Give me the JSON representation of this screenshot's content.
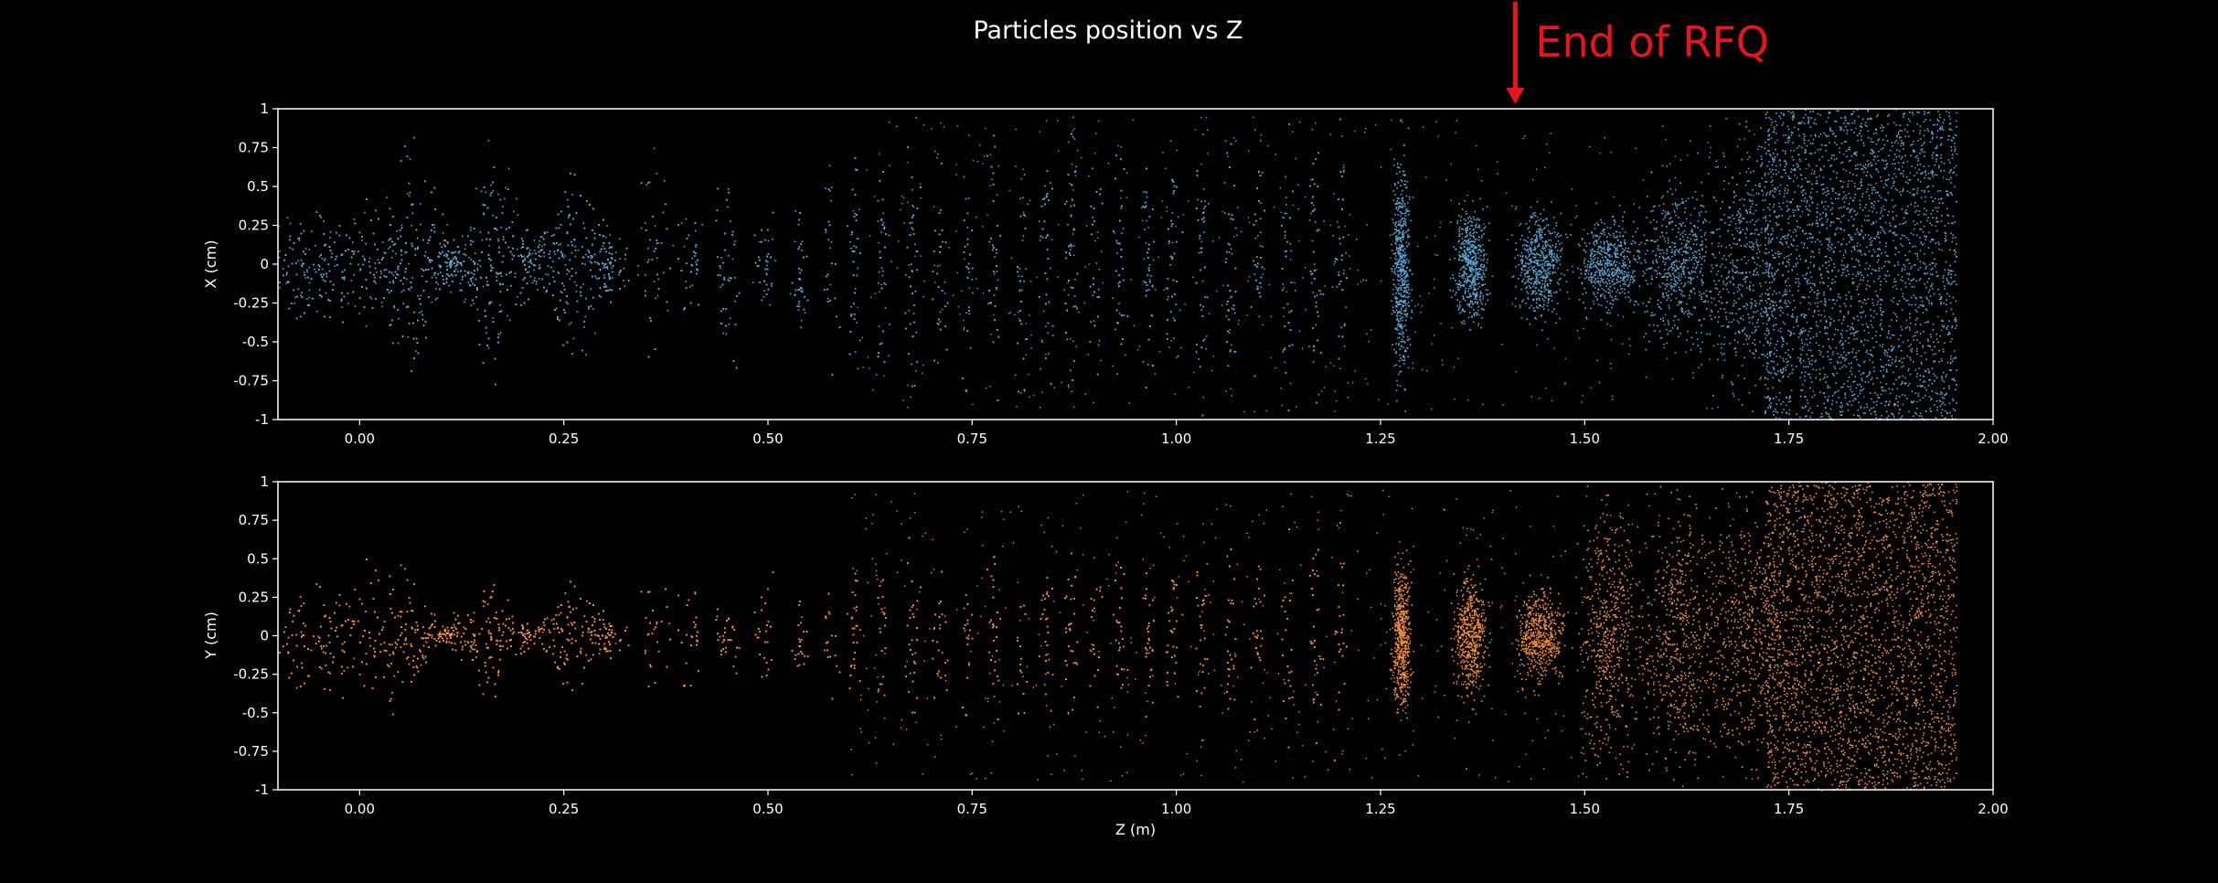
{
  "chart_data": {
    "title": "Particles position vs Z",
    "annotation": {
      "text": "End of RFQ",
      "x": 1.415,
      "color": "#e8141b"
    },
    "type": "scatter",
    "background": "#000000",
    "grid": false,
    "xlim": [
      -0.1,
      2.0
    ],
    "xticks": [
      0.0,
      0.25,
      0.5,
      0.75,
      1.0,
      1.25,
      1.5,
      1.75,
      2.0
    ],
    "xtick_labels": [
      "0.00",
      "0.25",
      "0.50",
      "0.75",
      "1.00",
      "1.25",
      "1.50",
      "1.75",
      "2.00"
    ],
    "xlabel": "Z (m)",
    "rfq_bunch_centers": [
      0.063,
      0.117,
      0.165,
      0.212,
      0.263,
      0.31,
      0.36,
      0.405,
      0.45,
      0.495,
      0.538,
      0.575,
      0.605,
      0.64,
      0.675,
      0.71,
      0.745,
      0.775,
      0.81,
      0.84,
      0.87,
      0.9,
      0.93,
      0.965,
      0.995,
      1.03,
      1.065,
      1.1,
      1.135,
      1.17,
      1.2
    ],
    "bunch_centers": [
      1.275,
      1.36,
      1.445,
      1.53,
      1.615,
      1.7
    ],
    "z_end": 1.955,
    "panels": [
      {
        "name": "x",
        "ylabel": "X (cm)",
        "ylim": [
          -1,
          1
        ],
        "yticks": [
          1,
          0.75,
          0.5,
          0.25,
          0,
          -0.25,
          -0.5,
          -0.75,
          -1
        ],
        "ytick_labels": [
          "1",
          "0.75",
          "0.5",
          "0.25",
          "0",
          "-0.25",
          "-0.5",
          "-0.75",
          "-1"
        ],
        "color": "#5ba8d6",
        "rfq_envelope": [
          [
            -0.1,
            0.48
          ],
          [
            -0.03,
            0.38
          ],
          [
            0.03,
            0.42
          ],
          [
            0.063,
            0.85
          ],
          [
            0.117,
            0.12
          ],
          [
            0.165,
            0.85
          ],
          [
            0.212,
            0.15
          ],
          [
            0.263,
            0.78
          ],
          [
            0.31,
            0.2
          ],
          [
            0.36,
            0.72
          ],
          [
            0.405,
            0.3
          ],
          [
            0.45,
            0.85
          ],
          [
            0.495,
            0.35
          ],
          [
            0.55,
            0.55
          ],
          [
            0.6,
            0.85
          ],
          [
            0.7,
            0.85
          ],
          [
            0.8,
            0.9
          ],
          [
            0.9,
            0.92
          ],
          [
            1.0,
            0.9
          ],
          [
            1.1,
            0.95
          ],
          [
            1.2,
            0.95
          ]
        ],
        "bunches": [
          {
            "z": 1.275,
            "ymax": 0.85
          },
          {
            "z": 1.36,
            "ymax": 0.42
          },
          {
            "z": 1.445,
            "ymax": 0.4
          },
          {
            "z": 1.53,
            "ymax": 0.35
          },
          {
            "z": 1.615,
            "ymax": 0.6
          },
          {
            "z": 1.7,
            "ymax": 0.95
          }
        ]
      },
      {
        "name": "y",
        "ylabel": "Y (cm)",
        "ylim": [
          -1,
          1
        ],
        "yticks": [
          1,
          0.75,
          0.5,
          0.25,
          0,
          -0.25,
          -0.5,
          -0.75,
          -1
        ],
        "ytick_labels": [
          "1",
          "0.75",
          "0.5",
          "0.25",
          "0",
          "-0.25",
          "-0.5",
          "-0.75",
          "-1"
        ],
        "color": "#f58e3c",
        "rfq_envelope": [
          [
            -0.1,
            0.45
          ],
          [
            -0.03,
            0.4
          ],
          [
            0.04,
            0.55
          ],
          [
            0.1,
            0.06
          ],
          [
            0.163,
            0.45
          ],
          [
            0.21,
            0.05
          ],
          [
            0.26,
            0.45
          ],
          [
            0.31,
            0.12
          ],
          [
            0.38,
            0.5
          ],
          [
            0.45,
            0.2
          ],
          [
            0.5,
            0.5
          ],
          [
            0.55,
            0.3
          ],
          [
            0.6,
            0.5
          ],
          [
            0.7,
            0.55
          ],
          [
            0.8,
            0.55
          ],
          [
            0.9,
            0.6
          ],
          [
            1.0,
            0.6
          ],
          [
            1.1,
            0.72
          ],
          [
            1.2,
            0.75
          ]
        ],
        "bunches": [
          {
            "z": 1.275,
            "ymax": 0.55
          },
          {
            "z": 1.36,
            "ymax": 0.45
          },
          {
            "z": 1.445,
            "ymax": 0.35
          },
          {
            "z": 1.53,
            "ymax": 0.98
          },
          {
            "z": 1.615,
            "ymax": 0.98
          },
          {
            "z": 1.7,
            "ymax": 0.98
          }
        ]
      }
    ]
  }
}
